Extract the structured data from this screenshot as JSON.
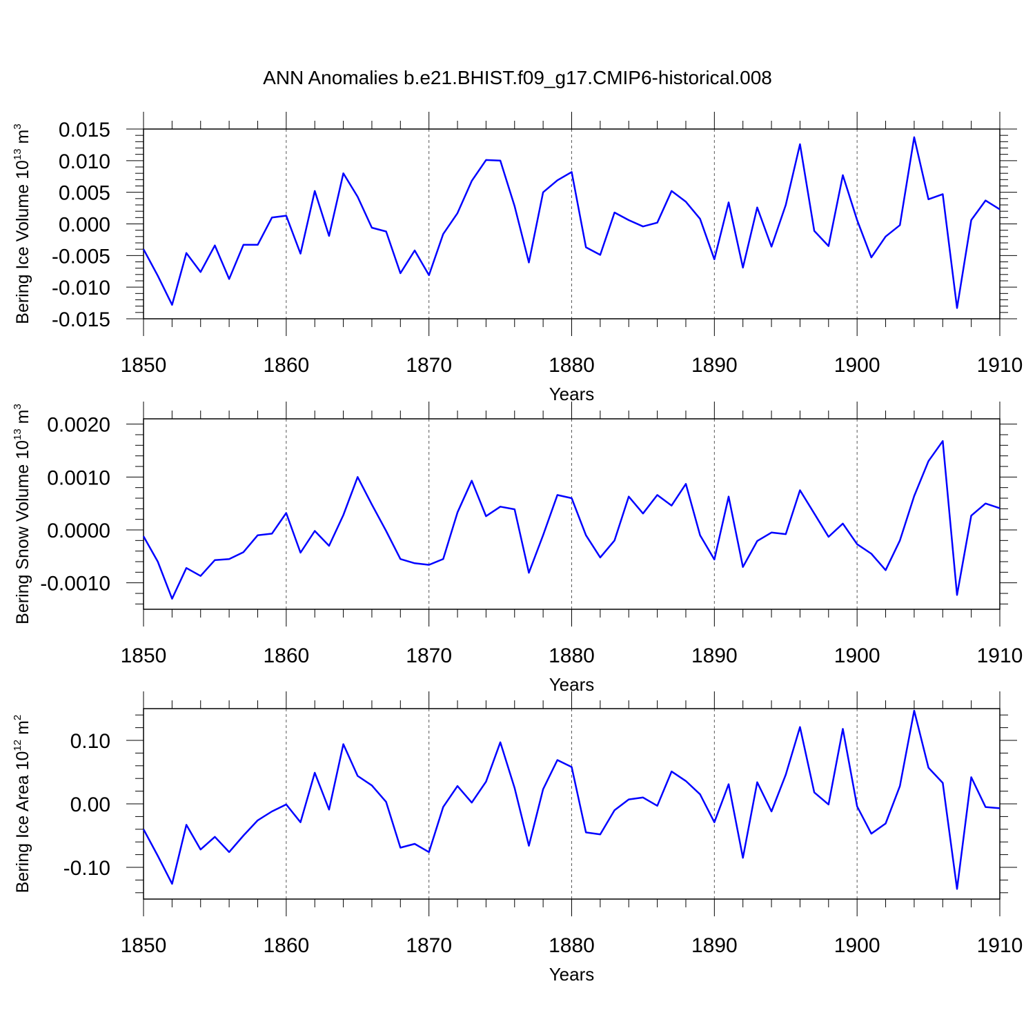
{
  "title": "ANN Anomalies b.e21.BHIST.f09_g17.CMIP6-historical.008",
  "colors": {
    "line": "#0000ff",
    "frame": "#000000",
    "grid": "#555555"
  },
  "chart_data": [
    {
      "type": "line",
      "title": "ANN Anomalies b.e21.BHIST.f09_g17.CMIP6-historical.008",
      "xlabel": "Years",
      "ylabel": {
        "text": "Bering Ice Volume 10",
        "exp": "13",
        "unit": " m",
        "unit_exp": "3"
      },
      "xlim": [
        1850,
        1910
      ],
      "ylim": [
        -0.015,
        0.015
      ],
      "x_ticks": [
        1850,
        1860,
        1870,
        1880,
        1890,
        1900,
        1910
      ],
      "x_tick_labels": [
        "1850",
        "1860",
        "1870",
        "1880",
        "1890",
        "1900",
        "1910"
      ],
      "y_ticks": [
        -0.015,
        -0.01,
        -0.005,
        0,
        0.005,
        0.01,
        0.015
      ],
      "y_tick_labels": [
        "-0.015",
        "-0.010",
        "-0.005",
        "0.000",
        "0.005",
        "0.010",
        "0.015"
      ],
      "grid": "vertical dashed at decades",
      "x": [
        1850,
        1851,
        1852,
        1853,
        1854,
        1855,
        1856,
        1857,
        1858,
        1859,
        1860,
        1861,
        1862,
        1863,
        1864,
        1865,
        1866,
        1867,
        1868,
        1869,
        1870,
        1871,
        1872,
        1873,
        1874,
        1875,
        1876,
        1877,
        1878,
        1879,
        1880,
        1881,
        1882,
        1883,
        1884,
        1885,
        1886,
        1887,
        1888,
        1889,
        1890,
        1891,
        1892,
        1893,
        1894,
        1895,
        1896,
        1897,
        1898,
        1899,
        1900,
        1901,
        1902,
        1903,
        1904,
        1905,
        1906,
        1907,
        1908,
        1909,
        1910
      ],
      "values": [
        -0.004,
        -0.0082,
        -0.0128,
        -0.0046,
        -0.0076,
        -0.0034,
        -0.0087,
        -0.0033,
        -0.0033,
        0.001,
        0.0013,
        -0.0047,
        0.0052,
        -0.0019,
        0.008,
        0.0043,
        -0.0006,
        -0.0012,
        -0.0078,
        -0.0042,
        -0.0081,
        -0.0016,
        0.0017,
        0.0068,
        0.0101,
        0.01,
        0.0028,
        -0.0061,
        0.005,
        0.0069,
        0.0082,
        -0.0037,
        -0.0049,
        0.0018,
        0.0006,
        -0.0004,
        0.0002,
        0.0052,
        0.0035,
        0.0008,
        -0.0056,
        0.0034,
        -0.0069,
        0.0026,
        -0.0036,
        0.003,
        0.0126,
        -0.0011,
        -0.0035,
        0.0077,
        0.0006,
        -0.0053,
        -0.002,
        -0.0002,
        0.0137,
        0.0039,
        0.0047,
        -0.0133,
        0.0006,
        0.0037,
        0.0023
      ]
    },
    {
      "type": "line",
      "xlabel": "Years",
      "ylabel": {
        "text": "Bering Snow Volume 10",
        "exp": "13",
        "unit": " m",
        "unit_exp": "3"
      },
      "xlim": [
        1850,
        1910
      ],
      "ylim": [
        -0.0015,
        0.0021
      ],
      "x_ticks": [
        1850,
        1860,
        1870,
        1880,
        1890,
        1900,
        1910
      ],
      "x_tick_labels": [
        "1850",
        "1860",
        "1870",
        "1880",
        "1890",
        "1900",
        "1910"
      ],
      "y_ticks": [
        -0.001,
        0,
        0.001,
        0.002
      ],
      "y_tick_labels": [
        "-0.0010",
        "0.0000",
        "0.0010",
        "0.0020"
      ],
      "grid": "vertical dashed at decades",
      "x": [
        1850,
        1851,
        1852,
        1853,
        1854,
        1855,
        1856,
        1857,
        1858,
        1859,
        1860,
        1861,
        1862,
        1863,
        1864,
        1865,
        1866,
        1867,
        1868,
        1869,
        1870,
        1871,
        1872,
        1873,
        1874,
        1875,
        1876,
        1877,
        1878,
        1879,
        1880,
        1881,
        1882,
        1883,
        1884,
        1885,
        1886,
        1887,
        1888,
        1889,
        1890,
        1891,
        1892,
        1893,
        1894,
        1895,
        1896,
        1897,
        1898,
        1899,
        1900,
        1901,
        1902,
        1903,
        1904,
        1905,
        1906,
        1907,
        1908,
        1909,
        1910
      ],
      "values": [
        -0.00012,
        -0.0006,
        -0.0013,
        -0.00072,
        -0.00087,
        -0.00057,
        -0.00055,
        -0.00042,
        -0.0001,
        -7e-05,
        0.00032,
        -0.00043,
        -2e-05,
        -0.0003,
        0.00028,
        0.001,
        0.00048,
        -2e-05,
        -0.00055,
        -0.00063,
        -0.00066,
        -0.00055,
        0.00033,
        0.00093,
        0.00026,
        0.00044,
        0.00039,
        -0.00081,
        -0.0001,
        0.00066,
        0.0006,
        -0.0001,
        -0.00052,
        -0.0002,
        0.00063,
        0.00031,
        0.00066,
        0.00046,
        0.00087,
        -0.0001,
        -0.00056,
        0.00063,
        -0.0007,
        -0.00021,
        -5e-05,
        -8e-05,
        0.00075,
        0.00031,
        -0.00013,
        0.00012,
        -0.00027,
        -0.00045,
        -0.00076,
        -0.0002,
        0.00064,
        0.0013,
        0.00168,
        -0.00123,
        0.00027,
        0.0005,
        0.00041
      ]
    },
    {
      "type": "line",
      "xlabel": "Years",
      "ylabel": {
        "text": "Bering Ice Area 10",
        "exp": "12",
        "unit": " m",
        "unit_exp": "2"
      },
      "xlim": [
        1850,
        1910
      ],
      "ylim": [
        -0.15,
        0.15
      ],
      "x_ticks": [
        1850,
        1860,
        1870,
        1880,
        1890,
        1900,
        1910
      ],
      "x_tick_labels": [
        "1850",
        "1860",
        "1870",
        "1880",
        "1890",
        "1900",
        "1910"
      ],
      "y_ticks": [
        -0.1,
        0,
        0.1
      ],
      "y_tick_labels": [
        "-0.10",
        "0.00",
        "0.10"
      ],
      "grid": "vertical dashed at decades",
      "x": [
        1850,
        1851,
        1852,
        1853,
        1854,
        1855,
        1856,
        1857,
        1858,
        1859,
        1860,
        1861,
        1862,
        1863,
        1864,
        1865,
        1866,
        1867,
        1868,
        1869,
        1870,
        1871,
        1872,
        1873,
        1874,
        1875,
        1876,
        1877,
        1878,
        1879,
        1880,
        1881,
        1882,
        1883,
        1884,
        1885,
        1886,
        1887,
        1888,
        1889,
        1890,
        1891,
        1892,
        1893,
        1894,
        1895,
        1896,
        1897,
        1898,
        1899,
        1900,
        1901,
        1902,
        1903,
        1904,
        1905,
        1906,
        1907,
        1908,
        1909,
        1910
      ],
      "values": [
        -0.04,
        -0.082,
        -0.126,
        -0.033,
        -0.072,
        -0.052,
        -0.076,
        -0.05,
        -0.026,
        -0.012,
        -0.001,
        -0.029,
        0.049,
        -0.009,
        0.094,
        0.044,
        0.029,
        0.003,
        -0.069,
        -0.063,
        -0.076,
        -0.005,
        0.028,
        0.002,
        0.035,
        0.097,
        0.025,
        -0.066,
        0.023,
        0.069,
        0.058,
        -0.045,
        -0.048,
        -0.01,
        0.007,
        0.01,
        -0.003,
        0.051,
        0.036,
        0.015,
        -0.029,
        0.031,
        -0.085,
        0.034,
        -0.012,
        0.046,
        0.121,
        0.018,
        -0.001,
        0.118,
        -0.004,
        -0.047,
        -0.031,
        0.028,
        0.147,
        0.057,
        0.033,
        -0.134,
        0.042,
        -0.005,
        -0.007
      ]
    }
  ]
}
